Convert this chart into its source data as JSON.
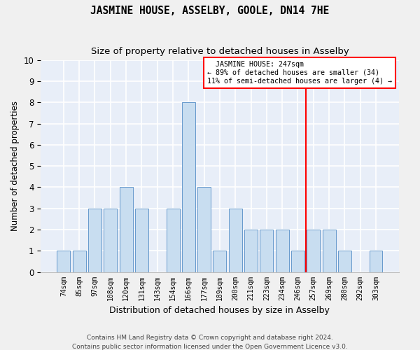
{
  "title": "JASMINE HOUSE, ASSELBY, GOOLE, DN14 7HE",
  "subtitle": "Size of property relative to detached houses in Asselby",
  "xlabel": "Distribution of detached houses by size in Asselby",
  "ylabel": "Number of detached properties",
  "categories": [
    "74sqm",
    "85sqm",
    "97sqm",
    "108sqm",
    "120sqm",
    "131sqm",
    "143sqm",
    "154sqm",
    "166sqm",
    "177sqm",
    "189sqm",
    "200sqm",
    "211sqm",
    "223sqm",
    "234sqm",
    "246sqm",
    "257sqm",
    "269sqm",
    "280sqm",
    "292sqm",
    "303sqm"
  ],
  "values": [
    1,
    1,
    3,
    3,
    4,
    3,
    0,
    3,
    8,
    4,
    1,
    3,
    2,
    2,
    2,
    1,
    2,
    2,
    1,
    0,
    1
  ],
  "bar_color": "#c8ddf0",
  "bar_edgecolor": "#6699cc",
  "bg_color": "#e8eef8",
  "plot_bg": "#e8eef8",
  "grid_color": "#ffffff",
  "fig_bg": "#f0f0f0",
  "ylim": [
    0,
    10
  ],
  "yticks": [
    0,
    1,
    2,
    3,
    4,
    5,
    6,
    7,
    8,
    9,
    10
  ],
  "annotation_title": "JASMINE HOUSE: 247sqm",
  "annotation_line1": "← 89% of detached houses are smaller (34)",
  "annotation_line2": "11% of semi-detached houses are larger (4) →",
  "footer1": "Contains HM Land Registry data © Crown copyright and database right 2024.",
  "footer2": "Contains public sector information licensed under the Open Government Licence v3.0."
}
